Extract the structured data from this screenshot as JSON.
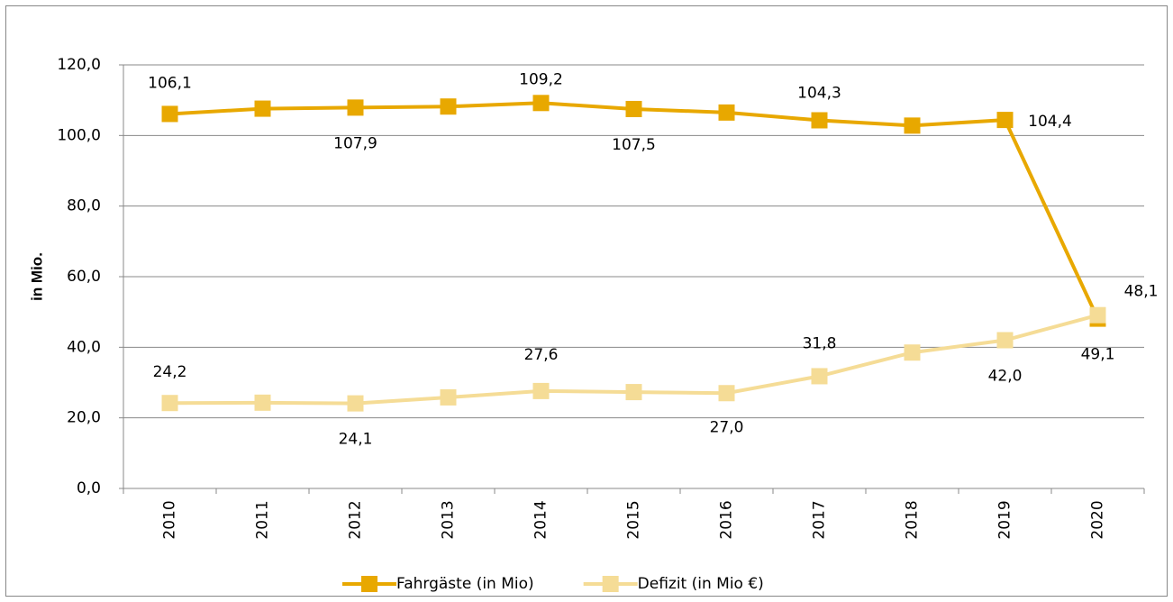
{
  "chart_data": {
    "type": "line",
    "y_label": "in Mio.",
    "categories": [
      "2010",
      "2011",
      "2012",
      "2013",
      "2014",
      "2015",
      "2016",
      "2017",
      "2018",
      "2019",
      "2020"
    ],
    "series": [
      {
        "name": "Fahrgäste (in Mio)",
        "color": "#e8a800",
        "values": [
          106.1,
          107.6,
          107.9,
          108.2,
          109.2,
          107.5,
          106.5,
          104.3,
          102.8,
          104.4,
          48.1
        ],
        "value_labels": [
          "106,1",
          null,
          "107,9",
          null,
          "109,2",
          "107,5",
          null,
          "104,3",
          null,
          "104,4",
          "48,1"
        ]
      },
      {
        "name": "Defizit (in Mio €)",
        "color": "#f5dc96",
        "values": [
          24.2,
          24.3,
          24.1,
          25.8,
          27.6,
          27.3,
          27.0,
          31.8,
          38.5,
          42.0,
          49.1
        ],
        "value_labels": [
          "24,2",
          null,
          "24,1",
          null,
          "27,6",
          null,
          "27,0",
          "31,8",
          null,
          "42,0",
          "49,1"
        ]
      }
    ],
    "ylim": [
      0,
      120
    ],
    "yticks": [
      {
        "value": 0,
        "label": "0,0"
      },
      {
        "value": 20,
        "label": "20,0"
      },
      {
        "value": 40,
        "label": "40,0"
      },
      {
        "value": 60,
        "label": "60,0"
      },
      {
        "value": 80,
        "label": "80,0"
      },
      {
        "value": 100,
        "label": "100,0"
      },
      {
        "value": 120,
        "label": "120,0"
      }
    ],
    "grid": true,
    "legend": "bottom"
  }
}
